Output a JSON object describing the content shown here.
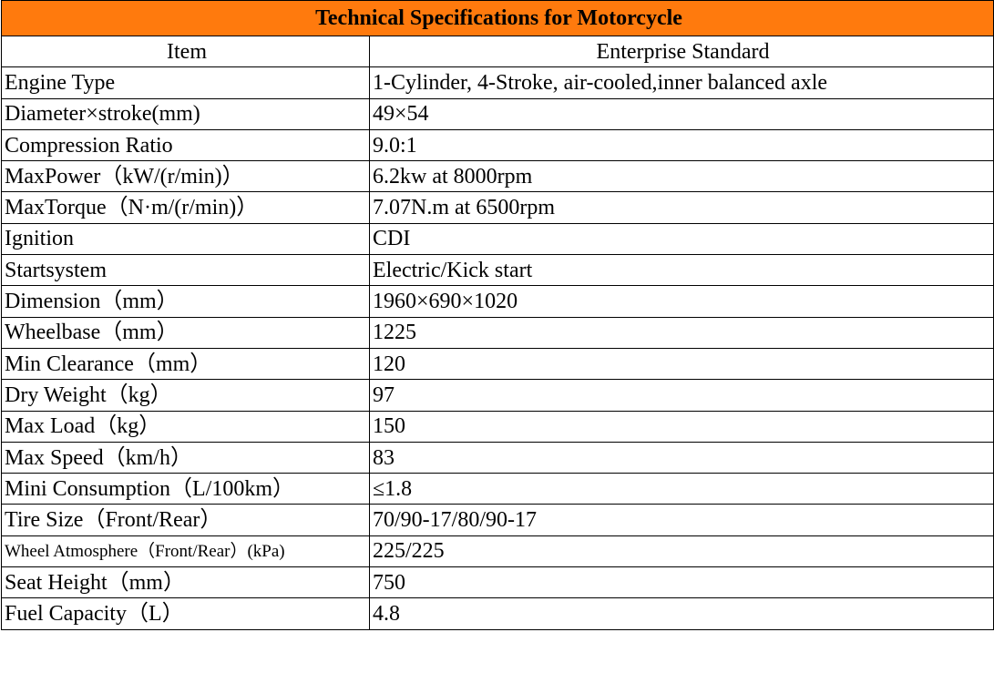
{
  "table": {
    "title": "Technical Specifications for Motorcycle",
    "columns": [
      "Item",
      "Enterprise Standard"
    ],
    "rows": [
      [
        "Engine Type",
        "1-Cylinder, 4-Stroke, air-cooled,inner balanced axle"
      ],
      [
        "Diameter×stroke(mm)",
        "49×54"
      ],
      [
        "Compression Ratio",
        "9.0:1"
      ],
      [
        "MaxPower（kW/(r/min)）",
        "6.2kw at 8000rpm"
      ],
      [
        "MaxTorque（N·m/(r/min)）",
        "7.07N.m at 6500rpm"
      ],
      [
        "Ignition",
        " CDI"
      ],
      [
        "Startsystem",
        "Electric/Kick start"
      ],
      [
        "Dimension（mm）",
        "1960×690×1020"
      ],
      [
        "Wheelbase（mm）",
        "1225"
      ],
      [
        "Min Clearance（mm）",
        "120"
      ],
      [
        "Dry Weight（kg）",
        "97"
      ],
      [
        "Max Load（kg）",
        "150"
      ],
      [
        "Max Speed（km/h）",
        "83"
      ],
      [
        "Mini Consumption（L/100km）",
        "≤1.8"
      ],
      [
        "Tire Size（Front/Rear）",
        "70/90-17/80/90-17"
      ],
      [
        "Wheel Atmosphere（Front/Rear）(kPa)",
        "225/225"
      ],
      [
        "Seat Height（mm）",
        "750"
      ],
      [
        "Fuel Capacity（L）",
        "4.8"
      ]
    ]
  }
}
